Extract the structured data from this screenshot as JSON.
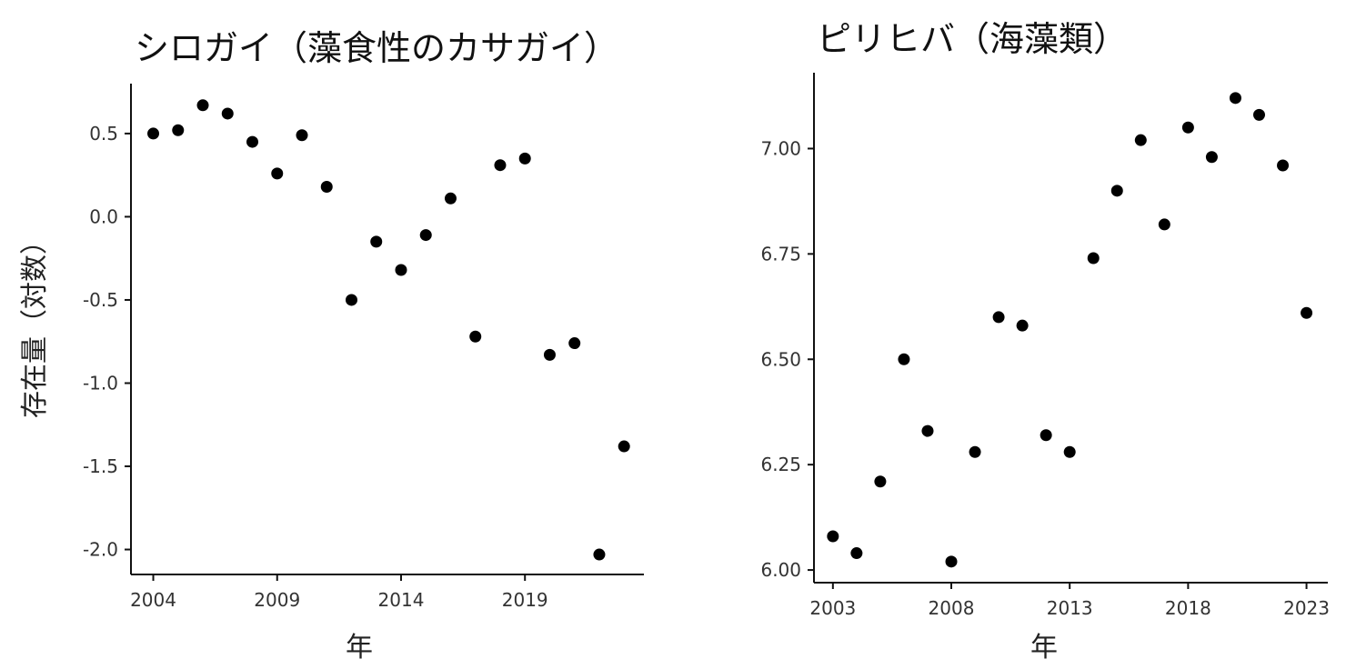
{
  "chart_data": [
    {
      "type": "scatter",
      "title": "シロガイ（藻食性のカサガイ）",
      "xlabel": "年",
      "ylabel": "存在量（対数）",
      "xlim": [
        2003.1,
        2023.8
      ],
      "ylim": [
        -2.15,
        0.8
      ],
      "xticks": [
        2004,
        2009,
        2014,
        2019
      ],
      "xtick_labels": [
        "2004",
        "2009",
        "2014",
        "2019"
      ],
      "yticks": [
        0.5,
        0.0,
        -0.5,
        -1.0,
        -1.5,
        -2.0
      ],
      "ytick_labels": [
        "0.5",
        "0.0",
        "-0.5",
        "-1.0",
        "-1.5",
        "-2.0"
      ],
      "grid": false,
      "point_color": "#000000",
      "x": [
        2004,
        2005,
        2006,
        2007,
        2008,
        2009,
        2010,
        2011,
        2012,
        2013,
        2014,
        2015,
        2016,
        2017,
        2018,
        2019,
        2020,
        2021,
        2022,
        2023
      ],
      "y": [
        0.5,
        0.52,
        0.67,
        0.62,
        0.45,
        0.26,
        0.49,
        0.18,
        -0.5,
        -0.15,
        -0.32,
        -0.11,
        0.11,
        -0.72,
        0.31,
        0.35,
        -0.83,
        -0.76,
        -2.03,
        -1.38
      ]
    },
    {
      "type": "scatter",
      "title": "ピリヒバ（海藻類）",
      "xlabel": "年",
      "ylabel": "",
      "xlim": [
        2002.2,
        2023.9
      ],
      "ylim": [
        5.97,
        7.18
      ],
      "xticks": [
        2003,
        2008,
        2013,
        2018,
        2023
      ],
      "xtick_labels": [
        "2003",
        "2008",
        "2013",
        "2018",
        "2023"
      ],
      "yticks": [
        7.0,
        6.75,
        6.5,
        6.25,
        6.0
      ],
      "ytick_labels": [
        "7.00",
        "6.75",
        "6.50",
        "6.25",
        "6.00"
      ],
      "grid": false,
      "point_color": "#000000",
      "x": [
        2003,
        2004,
        2005,
        2006,
        2007,
        2008,
        2009,
        2010,
        2011,
        2012,
        2013,
        2014,
        2015,
        2016,
        2017,
        2018,
        2019,
        2020,
        2021,
        2022,
        2023
      ],
      "y": [
        6.08,
        6.04,
        6.21,
        6.5,
        6.33,
        6.02,
        6.28,
        6.6,
        6.58,
        6.32,
        6.28,
        6.74,
        6.9,
        7.02,
        6.82,
        7.05,
        6.98,
        7.12,
        7.08,
        6.96,
        6.61
      ]
    }
  ]
}
